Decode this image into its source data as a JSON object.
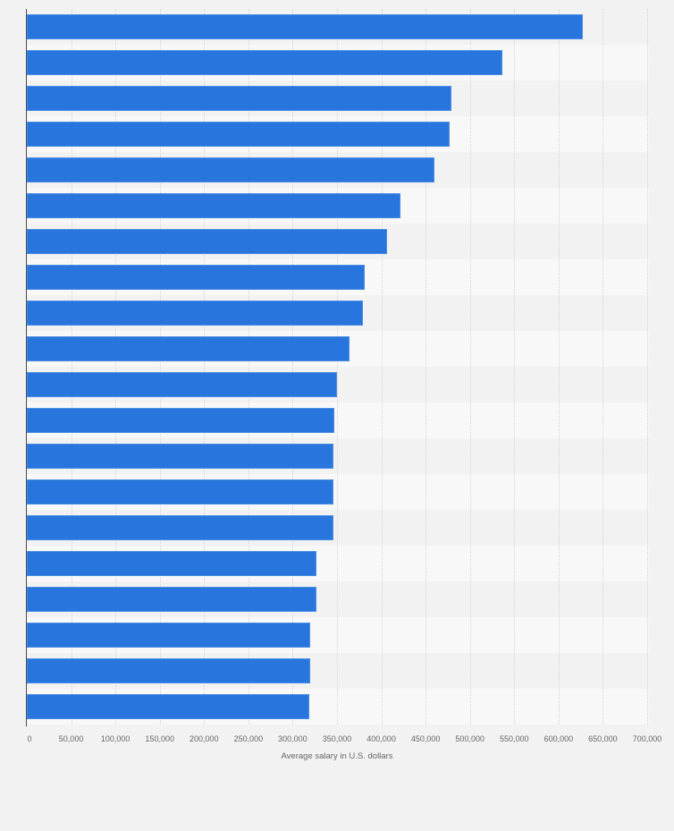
{
  "chart_data": {
    "type": "bar",
    "orientation": "horizontal",
    "title": "",
    "xlabel": "Average salary in U.S. dollars",
    "ylabel": "",
    "categories": [
      "",
      "",
      "",
      "",
      "",
      "",
      "",
      "",
      "",
      "",
      "",
      "",
      "",
      "",
      "",
      "",
      "",
      "",
      "",
      ""
    ],
    "values": [
      627000,
      537000,
      479000,
      477000,
      460000,
      422000,
      406000,
      381000,
      379000,
      364000,
      350000,
      347000,
      346000,
      346000,
      346000,
      327000,
      327000,
      320000,
      320000,
      319000
    ],
    "xlim": [
      0,
      700000
    ],
    "xticks": [
      "0",
      "50,000",
      "100,000",
      "150,000",
      "200,000",
      "250,000",
      "300,000",
      "350,000",
      "400,000",
      "450,000",
      "500,000",
      "550,000",
      "600,000",
      "650,000",
      "700,000"
    ],
    "grid": true,
    "legend": null,
    "colors": {
      "bar": "#2876dd",
      "background": "#f2f2f2",
      "row_alt": "#f8f8f8"
    }
  }
}
